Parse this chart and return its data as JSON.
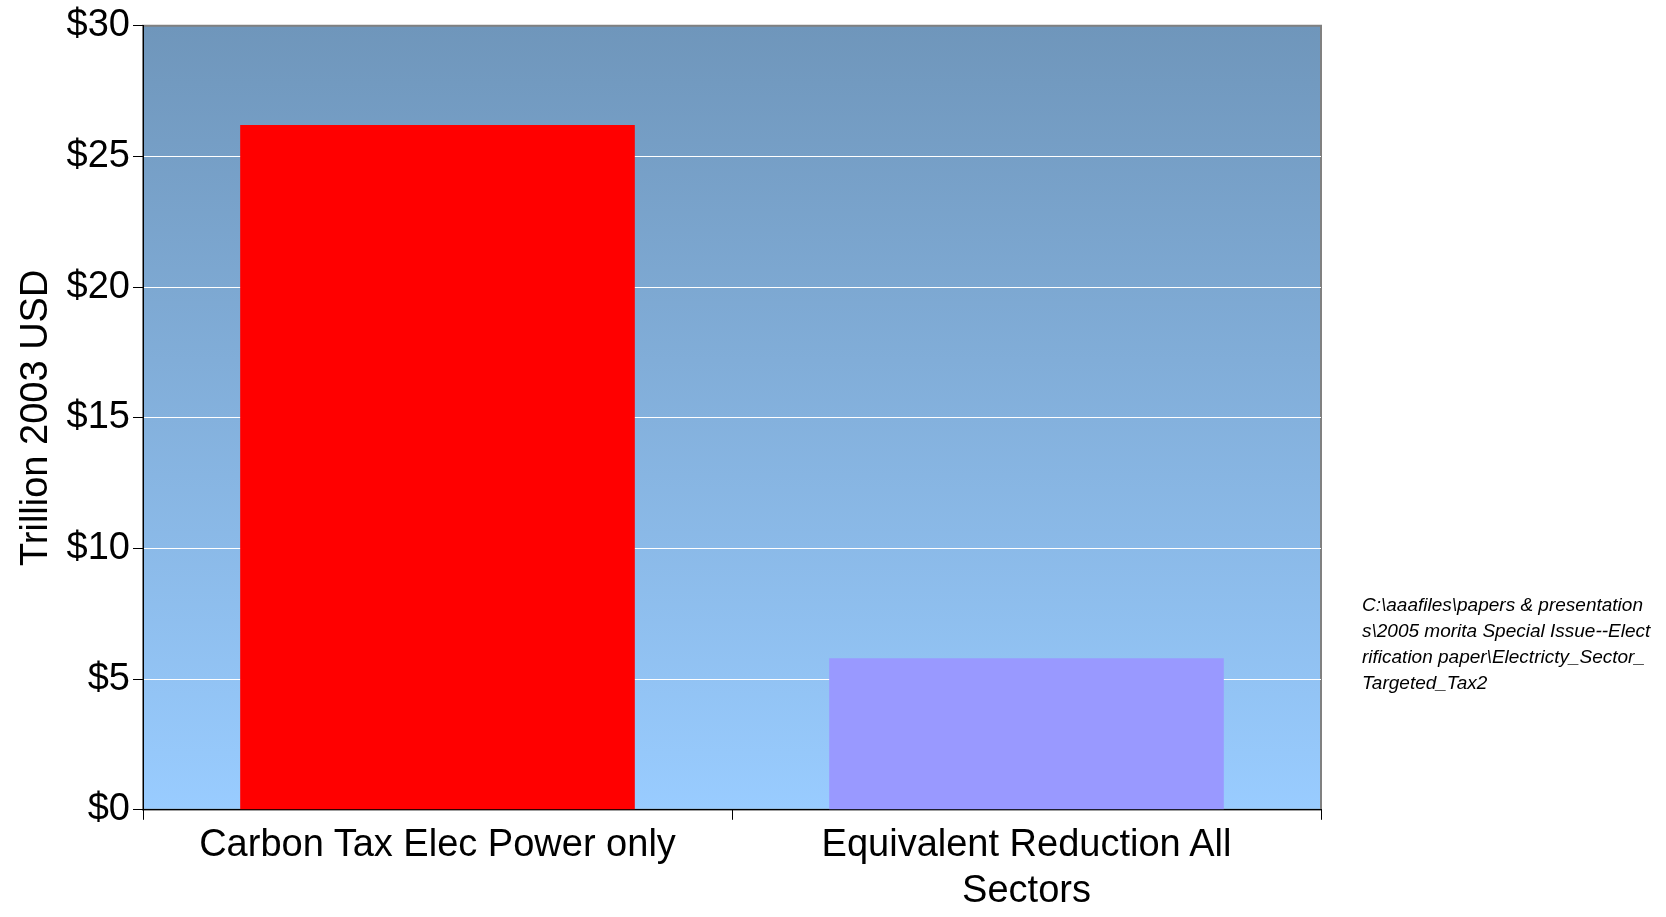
{
  "chart_data": {
    "type": "bar",
    "ylabel": "Trillion 2003 USD",
    "categories": [
      "Carbon Tax Elec Power only",
      "Equivalent Reduction All Sectors"
    ],
    "values": [
      26.2,
      5.8
    ],
    "colors": [
      "#ff0000",
      "#9999ff"
    ],
    "ylim": [
      0,
      30
    ],
    "yticks": [
      {
        "value": 0,
        "label": "$0"
      },
      {
        "value": 5,
        "label": "$5"
      },
      {
        "value": 10,
        "label": "$10"
      },
      {
        "value": 15,
        "label": "$15"
      },
      {
        "value": 20,
        "label": "$20"
      },
      {
        "value": 25,
        "label": "$25"
      },
      {
        "value": 30,
        "label": "$30"
      }
    ],
    "grid": "y",
    "legend": false,
    "annotations": [
      "C:\\aaafiles\\papers & presentations\\2005 morita Special Issue--Electrification paper\\Electricty_Sector_Targeted_Tax2"
    ]
  }
}
